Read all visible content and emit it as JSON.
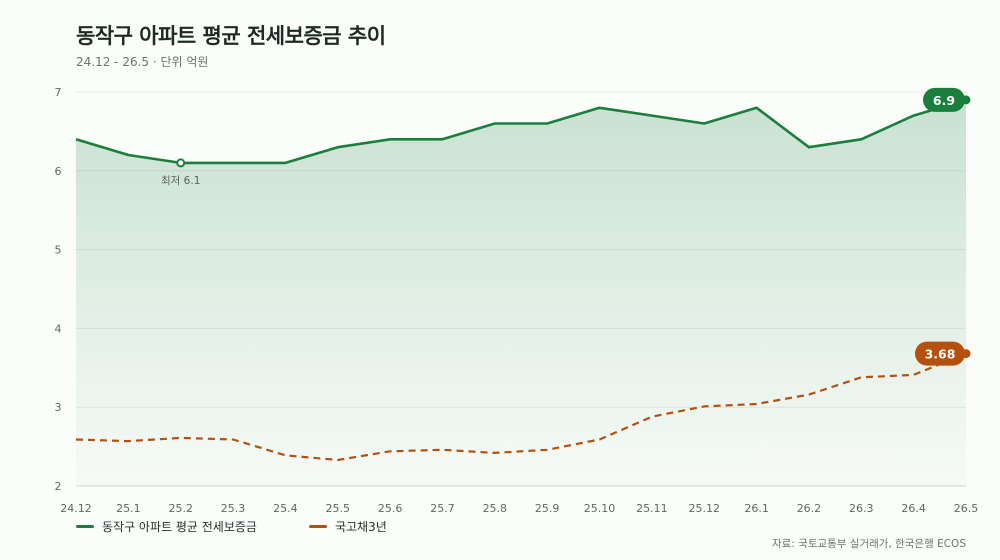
{
  "title": "동작구 아파트 평균 전세보증금 추이",
  "subtitle": "24.12 - 26.5 · 단위 억원",
  "source": "자료: 국토교통부 실거래가, 한국은행 ECOS",
  "colors": {
    "deposit": "#1a7f3c",
    "bond": "#b5500f",
    "grid": "#e3ebe5",
    "axis_text": "#5f6862"
  },
  "chart_data": {
    "type": "line",
    "x": [
      "24.12",
      "25.1",
      "25.2",
      "25.3",
      "25.4",
      "25.5",
      "25.6",
      "25.7",
      "25.8",
      "25.9",
      "25.10",
      "25.11",
      "25.12",
      "26.1",
      "26.2",
      "26.3",
      "26.4",
      "26.5"
    ],
    "ylim": [
      2,
      7
    ],
    "yticks": [
      2,
      3,
      4,
      5,
      6,
      7
    ],
    "series": [
      {
        "name": "동작구 아파트 평균 전세보증금",
        "style": "solid-area",
        "values": [
          6.4,
          6.2,
          6.1,
          6.1,
          6.1,
          6.3,
          6.4,
          6.4,
          6.6,
          6.6,
          6.8,
          6.7,
          6.6,
          6.8,
          6.3,
          6.4,
          6.7,
          6.9
        ]
      },
      {
        "name": "국고채3년",
        "style": "dashed",
        "values": [
          2.59,
          2.57,
          2.61,
          2.59,
          2.39,
          2.33,
          2.44,
          2.46,
          2.42,
          2.46,
          2.59,
          2.88,
          3.01,
          3.04,
          3.16,
          3.38,
          3.41,
          3.68
        ]
      }
    ],
    "annotations": [
      {
        "label": "최저 6.1",
        "series": 0,
        "index": 2
      },
      {
        "label": "6.9",
        "series": 0,
        "index": 17
      },
      {
        "label": "3.68",
        "series": 1,
        "index": 17
      }
    ],
    "grid": true,
    "legend": "bottom-left"
  }
}
